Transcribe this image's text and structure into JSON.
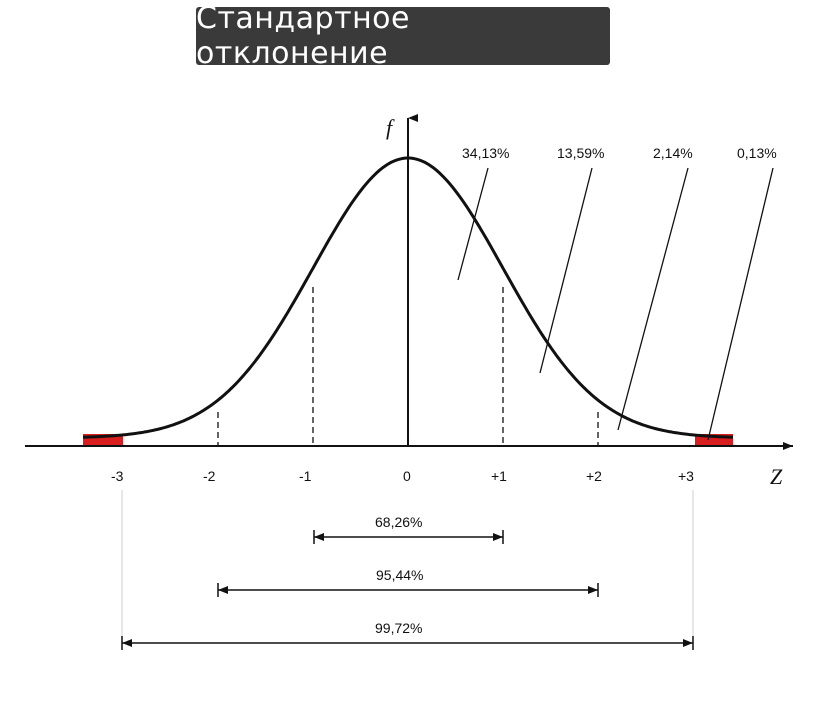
{
  "title": "Стандартное отклонение",
  "axis": {
    "y_label": "f",
    "x_label": "Z"
  },
  "ticks": [
    "-3",
    "-2",
    "-1",
    "0",
    "+1",
    "+2",
    "+3"
  ],
  "callouts": [
    "34,13%",
    "13,59%",
    "2,14%",
    "0,13%"
  ],
  "ranges": [
    "68,26%",
    "95,44%",
    "99,72%"
  ],
  "colors": {
    "tail_fill": "#d81e1e",
    "title_bg": "#3a3a3a"
  }
}
